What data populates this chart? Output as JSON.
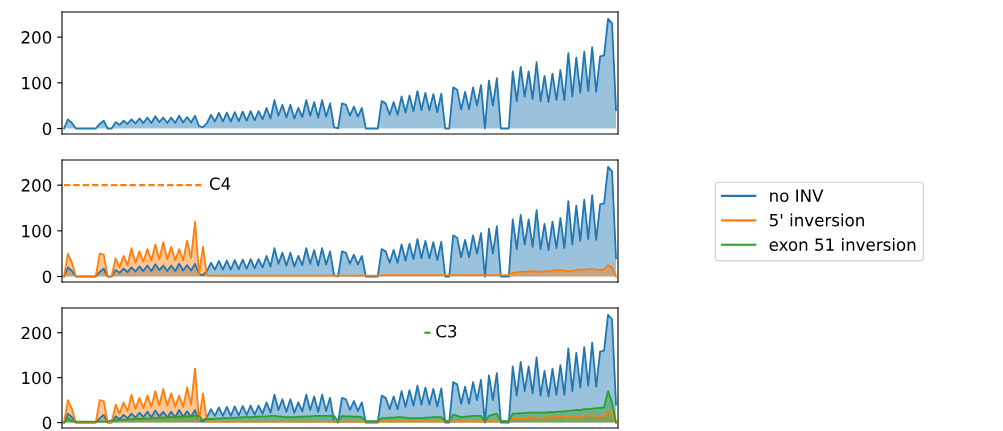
{
  "chart_data": [
    {
      "type": "area",
      "categories": [
        null,
        null,
        null,
        null,
        null,
        null,
        null,
        null,
        null,
        null,
        null,
        null,
        null,
        null,
        null,
        null,
        null,
        null,
        null,
        null,
        null,
        null,
        null,
        null,
        null,
        null,
        null,
        null,
        null,
        null,
        null,
        null,
        null,
        null,
        null,
        null,
        null,
        null,
        null,
        null,
        null,
        null,
        null,
        null,
        null,
        null,
        null,
        null,
        null,
        null,
        null,
        null,
        null,
        null,
        null,
        null,
        null,
        null,
        null,
        null,
        null,
        null,
        null,
        null,
        null,
        null,
        null,
        null,
        null,
        null,
        null,
        null,
        null,
        null,
        null,
        null,
        null,
        null,
        null,
        null,
        null,
        null,
        null,
        null,
        null,
        null,
        null,
        null,
        null,
        null,
        null,
        null,
        null,
        null,
        null,
        null,
        null,
        null,
        null,
        null,
        null,
        null,
        null,
        null,
        null,
        null,
        null,
        null,
        null,
        null,
        null,
        null,
        null,
        null,
        null,
        null,
        null,
        null,
        null,
        null,
        null,
        null,
        null,
        null,
        null,
        null,
        null,
        null,
        null,
        null,
        null,
        null,
        null,
        null,
        null,
        null,
        null,
        null,
        null,
        null
      ],
      "ylim": [
        -12,
        255
      ],
      "yticks": [
        0,
        100,
        200
      ],
      "series": [
        {
          "color": "#1f77b4",
          "values": [
            0,
            20,
            12,
            0,
            0,
            0,
            0,
            0,
            0,
            10,
            17,
            0,
            0,
            14,
            8,
            17,
            10,
            20,
            11,
            22,
            12,
            24,
            12,
            27,
            14,
            24,
            12,
            24,
            12,
            28,
            13,
            25,
            13,
            28,
            5,
            3,
            12,
            30,
            15,
            34,
            15,
            35,
            15,
            36,
            16,
            37,
            17,
            38,
            18,
            38,
            20,
            45,
            22,
            62,
            28,
            52,
            24,
            52,
            22,
            45,
            25,
            62,
            28,
            58,
            24,
            62,
            26,
            55,
            3,
            0,
            55,
            52,
            28,
            48,
            26,
            45,
            0,
            0,
            0,
            0,
            60,
            55,
            30,
            58,
            30,
            70,
            35,
            72,
            38,
            82,
            40,
            78,
            40,
            75,
            36,
            76,
            0,
            0,
            90,
            85,
            42,
            80,
            42,
            90,
            50,
            95,
            0,
            105,
            50,
            110,
            0,
            0,
            0,
            125,
            60,
            135,
            70,
            125,
            65,
            145,
            60,
            115,
            58,
            120,
            62,
            128,
            62,
            165,
            70,
            155,
            78,
            168,
            82,
            178,
            80,
            158,
            160,
            240,
            230,
            40
          ]
        }
      ]
    },
    {
      "type": "area",
      "categories": [
        null,
        null,
        null,
        null,
        null,
        null,
        null,
        null,
        null,
        null,
        null,
        null,
        null,
        null,
        null,
        null,
        null,
        null,
        null,
        null,
        null,
        null,
        null,
        null,
        null,
        null,
        null,
        null,
        null,
        null,
        null,
        null,
        null,
        null,
        null,
        null,
        null,
        null,
        null,
        null,
        null,
        null,
        null,
        null,
        null,
        null,
        null,
        null,
        null,
        null,
        null,
        null,
        null,
        null,
        null,
        null,
        null,
        null,
        null,
        null,
        null,
        null,
        null,
        null,
        null,
        null,
        null,
        null,
        null,
        null,
        null,
        null,
        null,
        null,
        null,
        null,
        null,
        null,
        null,
        null,
        null,
        null,
        null,
        null,
        null,
        null,
        null,
        null,
        null,
        null,
        null,
        null,
        null,
        null,
        null,
        null,
        null,
        null,
        null,
        null,
        null,
        null,
        null,
        null,
        null,
        null,
        null,
        null,
        null,
        null,
        null,
        null,
        null,
        null,
        null,
        null,
        null,
        null,
        null,
        null,
        null,
        null,
        null,
        null,
        null,
        null,
        null,
        null,
        null,
        null,
        null,
        null,
        null,
        null,
        null,
        null,
        null,
        null,
        null,
        null
      ],
      "ylim": [
        -12,
        255
      ],
      "yticks": [
        0,
        100,
        200
      ],
      "series": [
        {
          "color": "#1f77b4",
          "values": [
            0,
            20,
            12,
            0,
            0,
            0,
            0,
            0,
            0,
            10,
            17,
            0,
            0,
            14,
            8,
            17,
            10,
            20,
            11,
            22,
            12,
            24,
            12,
            27,
            14,
            24,
            12,
            24,
            12,
            28,
            13,
            25,
            13,
            28,
            5,
            3,
            12,
            30,
            15,
            34,
            15,
            35,
            15,
            36,
            16,
            37,
            17,
            38,
            18,
            38,
            20,
            45,
            22,
            62,
            28,
            52,
            24,
            52,
            22,
            45,
            25,
            62,
            28,
            58,
            24,
            62,
            26,
            55,
            3,
            0,
            55,
            52,
            28,
            48,
            26,
            45,
            0,
            0,
            0,
            0,
            60,
            55,
            30,
            58,
            30,
            70,
            35,
            72,
            38,
            82,
            40,
            78,
            40,
            75,
            36,
            76,
            0,
            0,
            90,
            85,
            42,
            80,
            42,
            90,
            50,
            95,
            0,
            105,
            50,
            110,
            0,
            0,
            0,
            125,
            60,
            135,
            70,
            125,
            65,
            145,
            60,
            115,
            58,
            120,
            62,
            128,
            62,
            165,
            70,
            155,
            78,
            168,
            82,
            178,
            80,
            158,
            160,
            240,
            230,
            40
          ]
        },
        {
          "color": "#ff7f0e",
          "values": [
            0,
            50,
            30,
            0,
            0,
            0,
            0,
            0,
            0,
            50,
            48,
            0,
            0,
            40,
            20,
            45,
            25,
            62,
            30,
            55,
            32,
            60,
            35,
            70,
            38,
            75,
            38,
            65,
            35,
            60,
            35,
            78,
            40,
            120,
            5,
            65,
            3,
            2,
            2,
            2,
            2,
            2,
            2,
            2,
            2,
            2,
            2,
            2,
            2,
            2,
            2,
            2,
            2,
            2,
            2,
            2,
            2,
            2,
            2,
            2,
            2,
            2,
            2,
            2,
            2,
            2,
            2,
            2,
            2,
            2,
            2,
            2,
            2,
            2,
            2,
            2,
            2,
            2,
            2,
            2,
            3,
            3,
            3,
            3,
            3,
            3,
            3,
            3,
            3,
            3,
            3,
            3,
            3,
            3,
            3,
            3,
            3,
            3,
            3,
            3,
            3,
            3,
            3,
            3,
            3,
            3,
            3,
            3,
            3,
            3,
            3,
            3,
            3,
            8,
            9,
            10,
            10,
            11,
            12,
            11,
            10,
            11,
            12,
            13,
            14,
            14,
            13,
            12,
            12,
            14,
            15,
            15,
            16,
            16,
            15,
            14,
            16,
            25,
            20,
            0
          ]
        },
        {
          "type": "line",
          "name": "C4",
          "line_style": "dashed",
          "color": "#ff7f0e",
          "values": [
            200,
            200,
            200,
            200,
            200,
            200,
            200,
            200,
            200,
            200,
            200,
            200,
            200,
            200,
            200,
            200,
            200,
            200,
            200,
            200,
            200,
            200,
            200,
            200,
            200,
            200,
            200,
            200,
            200,
            200,
            200,
            200,
            200,
            200,
            200,
            200,
            null,
            null,
            null,
            null,
            null,
            null,
            null,
            null,
            null,
            null,
            null,
            null,
            null,
            null,
            null,
            null,
            null,
            null,
            null,
            null,
            null,
            null,
            null,
            null,
            null,
            null,
            null,
            null,
            null,
            null,
            null,
            null,
            null,
            null,
            null,
            null,
            null,
            null,
            null,
            null,
            null,
            null,
            null,
            null,
            null,
            null,
            null,
            null,
            null,
            null,
            null,
            null,
            null,
            null,
            null,
            null,
            null,
            null,
            null,
            null,
            null,
            null,
            null,
            null,
            null,
            null,
            null,
            null,
            null,
            null,
            null,
            null,
            null,
            null,
            null,
            null,
            null,
            null,
            null,
            null,
            null,
            null,
            null,
            null,
            null,
            null,
            null,
            null,
            null,
            null,
            null,
            null,
            null,
            null,
            null,
            null,
            null,
            null,
            null,
            null,
            null,
            null,
            null,
            null
          ]
        }
      ]
    },
    {
      "type": "area",
      "categories": [
        null,
        null,
        null,
        null,
        null,
        null,
        null,
        null,
        null,
        null,
        null,
        null,
        null,
        null,
        null,
        null,
        null,
        null,
        null,
        null,
        null,
        null,
        null,
        null,
        null,
        null,
        null,
        null,
        null,
        null,
        null,
        null,
        null,
        null,
        null,
        null,
        null,
        null,
        null,
        null,
        null,
        null,
        null,
        null,
        null,
        null,
        null,
        null,
        null,
        null,
        null,
        null,
        null,
        null,
        null,
        null,
        null,
        null,
        null,
        null,
        null,
        null,
        null,
        null,
        null,
        null,
        null,
        null,
        null,
        null,
        null,
        null,
        null,
        null,
        null,
        null,
        null,
        null,
        null,
        null,
        null,
        null,
        null,
        null,
        null,
        null,
        null,
        null,
        null,
        null,
        null,
        null,
        null,
        null,
        null,
        null,
        null,
        null,
        null,
        null,
        null,
        null,
        null,
        null,
        null,
        null,
        null,
        null,
        null,
        null,
        null,
        null,
        null,
        null,
        null,
        null,
        null,
        null,
        null,
        null,
        null,
        null,
        null,
        null,
        null,
        null,
        null,
        null,
        null,
        null,
        null,
        null,
        null,
        null,
        null,
        null,
        null,
        null,
        null,
        null
      ],
      "ylim": [
        -12,
        255
      ],
      "yticks": [
        0,
        100,
        200
      ],
      "legend": "right",
      "series": [
        {
          "name": "no INV",
          "color": "#1f77b4",
          "values": [
            0,
            20,
            12,
            0,
            0,
            0,
            0,
            0,
            0,
            10,
            17,
            0,
            0,
            14,
            8,
            17,
            10,
            20,
            11,
            22,
            12,
            24,
            12,
            27,
            14,
            24,
            12,
            24,
            12,
            28,
            13,
            25,
            13,
            28,
            5,
            3,
            12,
            30,
            15,
            34,
            15,
            35,
            15,
            36,
            16,
            37,
            17,
            38,
            18,
            38,
            20,
            45,
            22,
            62,
            28,
            52,
            24,
            52,
            22,
            45,
            25,
            62,
            28,
            58,
            24,
            62,
            26,
            55,
            3,
            0,
            55,
            52,
            28,
            48,
            26,
            45,
            0,
            0,
            0,
            0,
            60,
            55,
            30,
            58,
            30,
            70,
            35,
            72,
            38,
            82,
            40,
            78,
            40,
            75,
            36,
            76,
            0,
            0,
            90,
            85,
            42,
            80,
            42,
            90,
            50,
            95,
            0,
            105,
            50,
            110,
            0,
            0,
            0,
            125,
            60,
            135,
            70,
            125,
            65,
            145,
            60,
            115,
            58,
            120,
            62,
            128,
            62,
            165,
            70,
            155,
            78,
            168,
            82,
            178,
            80,
            158,
            160,
            240,
            230,
            40
          ]
        },
        {
          "name": "5' inversion",
          "color": "#ff7f0e",
          "values": [
            0,
            50,
            30,
            0,
            0,
            0,
            0,
            0,
            0,
            50,
            48,
            0,
            0,
            40,
            20,
            45,
            25,
            62,
            30,
            55,
            32,
            60,
            35,
            70,
            38,
            75,
            38,
            65,
            35,
            60,
            35,
            78,
            40,
            120,
            5,
            65,
            3,
            2,
            2,
            2,
            2,
            2,
            2,
            2,
            2,
            2,
            2,
            2,
            2,
            2,
            2,
            2,
            2,
            2,
            2,
            2,
            2,
            2,
            2,
            2,
            2,
            2,
            2,
            2,
            2,
            2,
            2,
            2,
            2,
            2,
            2,
            2,
            2,
            2,
            2,
            2,
            2,
            2,
            2,
            2,
            3,
            3,
            3,
            3,
            3,
            3,
            3,
            3,
            3,
            3,
            3,
            3,
            3,
            3,
            3,
            3,
            3,
            3,
            3,
            3,
            3,
            3,
            3,
            3,
            3,
            3,
            3,
            3,
            3,
            3,
            3,
            3,
            3,
            8,
            9,
            10,
            10,
            11,
            12,
            11,
            10,
            11,
            12,
            13,
            14,
            14,
            13,
            12,
            12,
            14,
            15,
            15,
            16,
            16,
            15,
            14,
            16,
            25,
            20,
            0
          ]
        },
        {
          "name": "exon 51 inversion",
          "color": "#2ca02c",
          "values": [
            0,
            10,
            3,
            2,
            2,
            2,
            2,
            2,
            2,
            2,
            2,
            2,
            5,
            5,
            6,
            6,
            7,
            7,
            8,
            8,
            9,
            9,
            10,
            10,
            11,
            11,
            12,
            12,
            12,
            13,
            13,
            14,
            14,
            15,
            15,
            5,
            8,
            8,
            9,
            9,
            10,
            10,
            10,
            11,
            11,
            12,
            12,
            12,
            13,
            13,
            14,
            14,
            15,
            15,
            14,
            13,
            12,
            12,
            12,
            13,
            13,
            14,
            14,
            15,
            15,
            15,
            15,
            15,
            15,
            3,
            15,
            14,
            14,
            13,
            13,
            12,
            3,
            3,
            3,
            3,
            10,
            10,
            11,
            11,
            12,
            12,
            11,
            10,
            10,
            10,
            10,
            11,
            11,
            12,
            12,
            12,
            3,
            3,
            18,
            15,
            12,
            13,
            14,
            15,
            15,
            15,
            3,
            15,
            18,
            20,
            3,
            3,
            3,
            20,
            20,
            21,
            21,
            22,
            22,
            22,
            22,
            22,
            23,
            23,
            24,
            25,
            25,
            26,
            27,
            28,
            28,
            30,
            30,
            31,
            32,
            33,
            34,
            70,
            45,
            0
          ]
        },
        {
          "type": "line",
          "name": "C3",
          "color": "#2ca02c",
          "values": [
            null,
            null,
            null,
            null,
            null,
            null,
            null,
            null,
            null,
            null,
            null,
            null,
            null,
            null,
            null,
            null,
            null,
            null,
            null,
            null,
            null,
            null,
            null,
            null,
            null,
            null,
            null,
            null,
            null,
            null,
            null,
            null,
            null,
            null,
            null,
            null,
            null,
            null,
            null,
            null,
            null,
            null,
            null,
            null,
            null,
            null,
            null,
            null,
            null,
            null,
            null,
            null,
            null,
            null,
            null,
            null,
            null,
            null,
            null,
            null,
            null,
            null,
            null,
            null,
            null,
            null,
            null,
            null,
            null,
            null,
            null,
            null,
            null,
            null,
            null,
            null,
            null,
            null,
            null,
            null,
            null,
            null,
            null,
            null,
            null,
            null,
            null,
            null,
            null,
            null,
            null,
            200,
            200,
            null,
            null,
            null,
            null,
            null,
            null,
            null,
            null,
            null,
            null,
            null,
            null,
            null,
            null,
            null,
            null,
            null,
            null,
            null,
            null,
            null,
            null,
            null,
            null,
            null,
            null,
            null,
            null,
            null,
            null,
            null,
            null,
            null,
            null,
            null,
            null,
            null,
            null,
            null,
            null,
            null,
            null,
            null,
            null,
            null,
            null,
            null
          ]
        }
      ]
    }
  ]
}
